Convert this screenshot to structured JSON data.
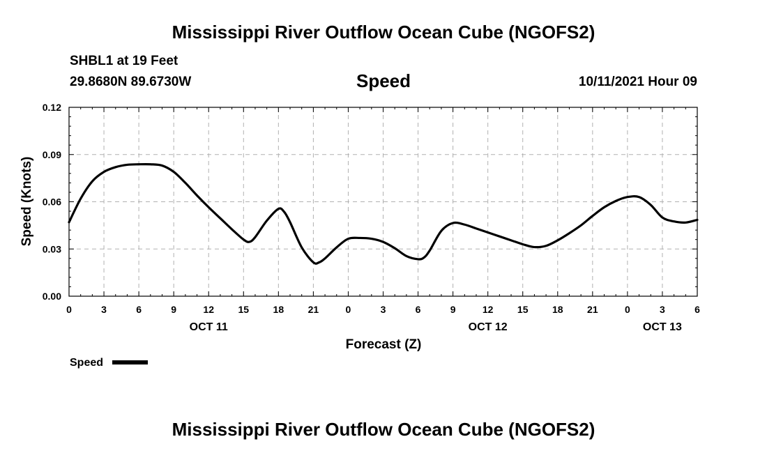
{
  "header": {
    "title": "Mississippi River Outflow Ocean Cube (NGOFS2)",
    "station": "SHBL1 at 19 Feet",
    "coords": "29.8680N  89.6730W",
    "variable": "Speed",
    "datetime": "10/11/2021 Hour 09"
  },
  "footer": {
    "title": "Mississippi River Outflow Ocean Cube (NGOFS2)"
  },
  "legend": {
    "label": "Speed",
    "color": "#000000"
  },
  "chart_data": {
    "type": "line",
    "xlabel": "Forecast (Z)",
    "ylabel": "Speed (Knots)",
    "ylim": [
      0,
      0.12
    ],
    "yticks": [
      "0.00",
      "0.03",
      "0.06",
      "0.09",
      "0.12"
    ],
    "xlim": [
      0,
      54
    ],
    "xtick_labels": [
      "0",
      "3",
      "6",
      "9",
      "12",
      "15",
      "18",
      "21",
      "0",
      "3",
      "6",
      "9",
      "12",
      "15",
      "18",
      "21",
      "0",
      "3",
      "6"
    ],
    "date_labels": [
      {
        "text": "OCT 11",
        "at": 12
      },
      {
        "text": "OCT 12",
        "at": 36
      },
      {
        "text": "OCT 13",
        "at": 51
      }
    ],
    "grid": true,
    "series": [
      {
        "name": "Speed",
        "color": "#000000",
        "x": [
          0,
          1,
          2,
          3,
          4,
          5,
          6,
          7,
          8,
          9,
          10,
          11,
          12,
          13,
          14,
          15,
          15.5,
          16,
          17,
          18,
          18.5,
          19,
          20,
          21,
          21.5,
          22,
          23,
          24,
          25,
          26,
          27,
          28,
          29,
          30,
          30.5,
          31,
          32,
          33,
          34,
          35,
          36,
          37,
          38,
          39,
          40,
          41,
          42,
          43,
          44,
          45,
          46,
          47,
          48,
          49,
          50,
          51,
          52,
          53,
          54
        ],
        "y": [
          0.047,
          0.062,
          0.073,
          0.079,
          0.082,
          0.0835,
          0.0838,
          0.0838,
          0.083,
          0.079,
          0.072,
          0.064,
          0.0565,
          0.0495,
          0.0425,
          0.036,
          0.0345,
          0.0375,
          0.048,
          0.0555,
          0.0535,
          0.047,
          0.031,
          0.0215,
          0.0215,
          0.024,
          0.031,
          0.0365,
          0.037,
          0.0365,
          0.0345,
          0.0305,
          0.0255,
          0.0235,
          0.0245,
          0.029,
          0.0415,
          0.0465,
          0.0455,
          0.043,
          0.0405,
          0.038,
          0.0355,
          0.033,
          0.0312,
          0.032,
          0.0355,
          0.04,
          0.045,
          0.051,
          0.0565,
          0.0605,
          0.063,
          0.063,
          0.058,
          0.05,
          0.0475,
          0.0468,
          0.0485
        ]
      }
    ]
  }
}
